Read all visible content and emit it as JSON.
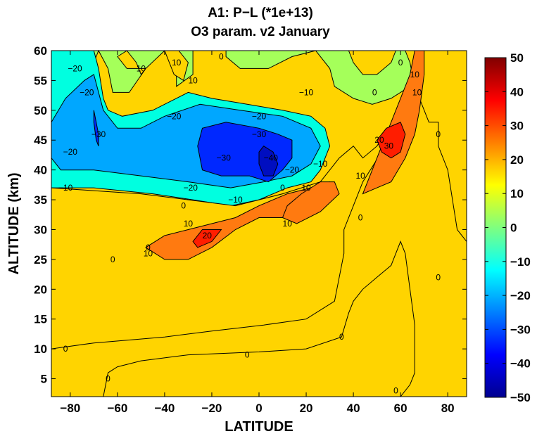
{
  "chart_data": {
    "type": "heatmap",
    "title": "A1: P−L (*1e+13)",
    "subtitle": "O3 param. v2 January",
    "xlabel": "LATITUDE",
    "ylabel": "ALTITUDE (km)",
    "xlim": [
      -88,
      88
    ],
    "ylim": [
      2,
      60
    ],
    "xticks": [
      -80,
      -60,
      -40,
      -20,
      0,
      20,
      40,
      60,
      80
    ],
    "yticks": [
      5,
      10,
      15,
      20,
      25,
      30,
      35,
      40,
      45,
      50,
      55,
      60
    ],
    "colorbar": {
      "range": [
        -50,
        50
      ],
      "ticks": [
        -50,
        -40,
        -30,
        -20,
        -10,
        0,
        10,
        20,
        30,
        40,
        50
      ],
      "colormap": "jet"
    },
    "contour_levels": [
      -40,
      -30,
      -20,
      -10,
      0,
      10,
      20,
      30,
      40
    ],
    "contour_labels": [
      {
        "text": "−20",
        "x": -78,
        "y": 57
      },
      {
        "text": "−20",
        "x": -73,
        "y": 53
      },
      {
        "text": "−30",
        "x": -68,
        "y": 46
      },
      {
        "text": "−20",
        "x": -80,
        "y": 43
      },
      {
        "text": "−10",
        "x": -82,
        "y": 37
      },
      {
        "text": "10",
        "x": -50,
        "y": 57
      },
      {
        "text": "10",
        "x": -35,
        "y": 58
      },
      {
        "text": "10",
        "x": -28,
        "y": 55
      },
      {
        "text": "0",
        "x": -16,
        "y": 59
      },
      {
        "text": "−10",
        "x": 20,
        "y": 53
      },
      {
        "text": "−20",
        "x": -36,
        "y": 49
      },
      {
        "text": "−20",
        "x": 0,
        "y": 49
      },
      {
        "text": "−30",
        "x": 0,
        "y": 46
      },
      {
        "text": "−30",
        "x": -15,
        "y": 42
      },
      {
        "text": "−40",
        "x": 5,
        "y": 42
      },
      {
        "text": "−20",
        "x": 14,
        "y": 40
      },
      {
        "text": "−10",
        "x": 26,
        "y": 41
      },
      {
        "text": "−20",
        "x": -29,
        "y": 37
      },
      {
        "text": "−10",
        "x": -10,
        "y": 35
      },
      {
        "text": "0",
        "x": -32,
        "y": 34
      },
      {
        "text": "0",
        "x": 10,
        "y": 37
      },
      {
        "text": "10",
        "x": 20,
        "y": 37
      },
      {
        "text": "10",
        "x": -30,
        "y": 31
      },
      {
        "text": "10",
        "x": 12,
        "y": 31
      },
      {
        "text": "20",
        "x": -22,
        "y": 29
      },
      {
        "text": "10",
        "x": -47,
        "y": 26
      },
      {
        "text": "0",
        "x": -47,
        "y": 27
      },
      {
        "text": "0",
        "x": -62,
        "y": 25
      },
      {
        "text": "0",
        "x": -82,
        "y": 10
      },
      {
        "text": "0",
        "x": -5,
        "y": 9
      },
      {
        "text": "0",
        "x": -64,
        "y": 5
      },
      {
        "text": "0",
        "x": 35,
        "y": 12
      },
      {
        "text": "0",
        "x": 58,
        "y": 3
      },
      {
        "text": "0",
        "x": 49,
        "y": 53
      },
      {
        "text": "0",
        "x": 43,
        "y": 32
      },
      {
        "text": "10",
        "x": 43,
        "y": 39
      },
      {
        "text": "20",
        "x": 51,
        "y": 45
      },
      {
        "text": "30",
        "x": 55,
        "y": 44
      },
      {
        "text": "10",
        "x": 66,
        "y": 56
      },
      {
        "text": "10",
        "x": 67,
        "y": 53
      },
      {
        "text": "0",
        "x": 76,
        "y": 46
      },
      {
        "text": "0",
        "x": 76,
        "y": 22
      },
      {
        "text": "0",
        "x": 60,
        "y": 58
      }
    ],
    "regions": [
      {
        "value": 5,
        "color": "#a5ff5a",
        "points": [
          [
            -88,
            60
          ],
          [
            -28,
            60
          ],
          [
            -28,
            56
          ],
          [
            -35,
            54
          ],
          [
            -35,
            57
          ],
          [
            -40,
            60
          ],
          [
            -48,
            57
          ],
          [
            -55,
            53
          ],
          [
            -62,
            53
          ],
          [
            -64,
            57
          ],
          [
            -68,
            60
          ],
          [
            -70,
            58
          ],
          [
            -72,
            55
          ],
          [
            -75,
            52
          ],
          [
            -82,
            50
          ],
          [
            -86,
            46
          ],
          [
            -88,
            40
          ]
        ]
      },
      {
        "value": -15,
        "color": "#00ffe0",
        "points": [
          [
            -88,
            60
          ],
          [
            -70,
            60
          ],
          [
            -68,
            57
          ],
          [
            -66,
            52
          ],
          [
            -64,
            50
          ],
          [
            -58,
            49
          ],
          [
            -45,
            50
          ],
          [
            -30,
            53
          ],
          [
            -20,
            52
          ],
          [
            -5,
            51
          ],
          [
            10,
            50
          ],
          [
            22,
            49
          ],
          [
            28,
            47
          ],
          [
            30,
            44
          ],
          [
            26,
            40
          ],
          [
            22,
            38
          ],
          [
            12,
            37
          ],
          [
            0,
            35
          ],
          [
            -12,
            34
          ],
          [
            -28,
            35
          ],
          [
            -45,
            36
          ],
          [
            -70,
            37
          ],
          [
            -88,
            37
          ]
        ]
      },
      {
        "value": 5,
        "color": "#a5ff5a",
        "points": [
          [
            -14,
            60
          ],
          [
            -14,
            59
          ],
          [
            -8,
            57
          ],
          [
            4,
            57
          ],
          [
            14,
            59
          ],
          [
            24,
            60
          ],
          [
            30,
            57
          ],
          [
            32,
            54
          ],
          [
            40,
            52
          ],
          [
            48,
            51
          ],
          [
            56,
            52
          ],
          [
            64,
            54
          ],
          [
            66,
            60
          ],
          [
            58,
            60
          ],
          [
            56,
            58
          ],
          [
            50,
            56
          ],
          [
            44,
            56
          ],
          [
            40,
            58
          ],
          [
            38,
            60
          ]
        ]
      },
      {
        "value": -25,
        "color": "#00a7ff",
        "points": [
          [
            -88,
            48
          ],
          [
            -82,
            52
          ],
          [
            -74,
            55
          ],
          [
            -70,
            56
          ],
          [
            -66,
            50
          ],
          [
            -60,
            47
          ],
          [
            -50,
            47
          ],
          [
            -40,
            49
          ],
          [
            -25,
            51
          ],
          [
            -8,
            50
          ],
          [
            10,
            49
          ],
          [
            22,
            47
          ],
          [
            26,
            44
          ],
          [
            22,
            41
          ],
          [
            14,
            39
          ],
          [
            2,
            38
          ],
          [
            -12,
            37
          ],
          [
            -30,
            38
          ],
          [
            -50,
            39
          ],
          [
            -70,
            40
          ],
          [
            -84,
            40
          ],
          [
            -88,
            42
          ]
        ]
      },
      {
        "value": -35,
        "color": "#0028ff",
        "points": [
          [
            -26,
            44
          ],
          [
            -24,
            47
          ],
          [
            -14,
            48
          ],
          [
            0,
            47
          ],
          [
            8,
            46
          ],
          [
            14,
            45
          ],
          [
            14,
            42
          ],
          [
            10,
            40
          ],
          [
            4,
            38
          ],
          [
            -4,
            39
          ],
          [
            -16,
            39
          ],
          [
            -24,
            40
          ]
        ]
      },
      {
        "value": -35,
        "color": "#0028ff",
        "points": [
          [
            -70,
            50
          ],
          [
            -68,
            46
          ],
          [
            -68,
            44
          ],
          [
            -69,
            45
          ],
          [
            -70,
            48
          ]
        ]
      },
      {
        "value": -45,
        "color": "#000ec0",
        "points": [
          [
            0,
            43
          ],
          [
            2,
            44
          ],
          [
            6,
            43
          ],
          [
            8,
            41
          ],
          [
            6,
            39
          ],
          [
            2,
            39
          ],
          [
            0,
            41
          ]
        ]
      },
      {
        "value": 15,
        "color": "#ffd400",
        "points": [
          [
            62,
            60
          ],
          [
            64,
            58
          ],
          [
            66,
            54
          ],
          [
            70,
            50
          ],
          [
            72,
            48
          ],
          [
            76,
            48
          ],
          [
            76,
            44
          ],
          [
            80,
            40
          ],
          [
            82,
            35
          ],
          [
            84,
            30
          ],
          [
            88,
            28
          ],
          [
            88,
            60
          ]
        ]
      },
      {
        "value": 15,
        "color": "#ffd400",
        "points": [
          [
            -60,
            59
          ],
          [
            -56,
            60
          ],
          [
            -52,
            58
          ],
          [
            -50,
            56
          ],
          [
            -48,
            57
          ],
          [
            -56,
            57
          ]
        ]
      },
      {
        "value": 15,
        "color": "#ffd400",
        "points": [
          [
            -40,
            60
          ],
          [
            -34,
            60
          ],
          [
            -30,
            58
          ],
          [
            -32,
            55
          ],
          [
            -36,
            56
          ]
        ]
      },
      {
        "value": 15,
        "color": "#ffd400",
        "points": [
          [
            -88,
            37
          ],
          [
            -50,
            36
          ],
          [
            -30,
            35
          ],
          [
            -10,
            34
          ],
          [
            10,
            36
          ],
          [
            26,
            38
          ],
          [
            34,
            42
          ],
          [
            40,
            44
          ],
          [
            44,
            42
          ],
          [
            50,
            44
          ],
          [
            60,
            50
          ],
          [
            64,
            55
          ],
          [
            62,
            52
          ],
          [
            58,
            47
          ],
          [
            52,
            43
          ],
          [
            44,
            38
          ],
          [
            40,
            34
          ],
          [
            36,
            30
          ],
          [
            36,
            26
          ],
          [
            32,
            18
          ],
          [
            20,
            15
          ],
          [
            2,
            14
          ],
          [
            -20,
            13
          ],
          [
            -40,
            12
          ],
          [
            -70,
            11
          ],
          [
            -88,
            10
          ]
        ]
      },
      {
        "value": 15,
        "color": "#ffd400",
        "points": [
          [
            -66,
            2
          ],
          [
            -64,
            6
          ],
          [
            -60,
            7
          ],
          [
            -50,
            8
          ],
          [
            -30,
            9
          ],
          [
            0,
            9.5
          ],
          [
            20,
            10
          ],
          [
            35,
            12
          ],
          [
            38,
            16
          ],
          [
            40,
            18
          ],
          [
            44,
            20
          ],
          [
            50,
            22
          ],
          [
            56,
            24
          ],
          [
            60,
            28
          ],
          [
            62,
            26
          ],
          [
            64,
            20
          ],
          [
            66,
            14
          ],
          [
            66,
            6
          ],
          [
            64,
            4
          ],
          [
            60,
            2
          ]
        ]
      },
      {
        "value": 25,
        "color": "#ff7a10",
        "points": [
          [
            -48,
            27
          ],
          [
            -40,
            25
          ],
          [
            -30,
            25
          ],
          [
            -20,
            27
          ],
          [
            -10,
            30
          ],
          [
            0,
            32
          ],
          [
            10,
            32
          ],
          [
            20,
            33
          ],
          [
            28,
            34
          ],
          [
            32,
            37
          ],
          [
            30,
            38
          ],
          [
            22,
            37
          ],
          [
            12,
            36
          ],
          [
            0,
            34
          ],
          [
            -10,
            32
          ],
          [
            -20,
            31
          ],
          [
            -30,
            30
          ],
          [
            -40,
            29
          ]
        ]
      },
      {
        "value": 25,
        "color": "#ff7a10",
        "points": [
          [
            10,
            32
          ],
          [
            16,
            31
          ],
          [
            26,
            33
          ],
          [
            34,
            36
          ],
          [
            32,
            38
          ],
          [
            26,
            38
          ],
          [
            18,
            36
          ],
          [
            12,
            34
          ]
        ]
      },
      {
        "value": 25,
        "color": "#ff7a10",
        "points": [
          [
            44,
            36
          ],
          [
            48,
            40
          ],
          [
            52,
            44
          ],
          [
            56,
            48
          ],
          [
            60,
            52
          ],
          [
            64,
            56
          ],
          [
            66,
            60
          ],
          [
            70,
            60
          ],
          [
            70,
            56
          ],
          [
            68,
            50
          ],
          [
            66,
            46
          ],
          [
            62,
            42
          ],
          [
            56,
            38
          ],
          [
            50,
            37
          ]
        ]
      },
      {
        "value": 35,
        "color": "#ff1d00",
        "points": [
          [
            -28,
            28
          ],
          [
            -24,
            30
          ],
          [
            -16,
            30
          ],
          [
            -20,
            28
          ],
          [
            -26,
            27
          ]
        ]
      },
      {
        "value": 35,
        "color": "#ff1d00",
        "points": [
          [
            50,
            45
          ],
          [
            54,
            47
          ],
          [
            60,
            48
          ],
          [
            62,
            46
          ],
          [
            60,
            43
          ],
          [
            56,
            42
          ],
          [
            52,
            43
          ]
        ]
      }
    ]
  }
}
